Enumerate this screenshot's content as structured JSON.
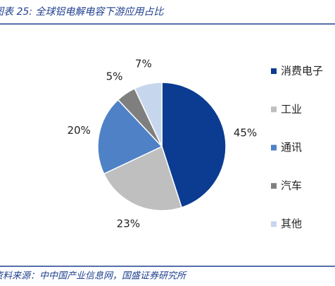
{
  "chart_data": {
    "type": "pie",
    "title": "图表 25: 全球铝电解电容下游应用占比",
    "source": "资料来源：中中国产业信息网，国盛证券研究所",
    "categories": [
      "消费电子",
      "工业",
      "通讯",
      "汽车",
      "其他"
    ],
    "values": [
      45,
      23,
      20,
      5,
      7
    ],
    "value_labels": [
      "45%",
      "23%",
      "20%",
      "5%",
      "7%"
    ],
    "colors": [
      "#0b3c91",
      "#bfbfbf",
      "#4f81c6",
      "#7f7f7f",
      "#c6d6ec"
    ],
    "legend": "right"
  }
}
